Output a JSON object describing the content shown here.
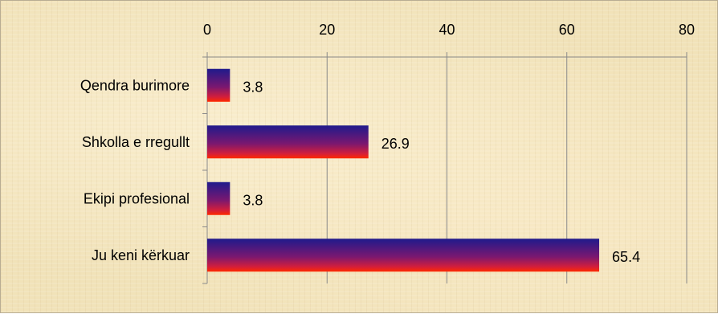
{
  "chart_data": {
    "type": "bar",
    "orientation": "horizontal",
    "categories": [
      "Qendra burimore",
      "Shkolla e rregullt",
      "Ekipi profesional",
      "Ju keni kërkuar"
    ],
    "values": [
      3.8,
      26.9,
      3.8,
      65.4
    ],
    "value_labels": [
      "3.8",
      "26.9",
      "3.8",
      "65.4"
    ],
    "xlim": [
      0,
      80
    ],
    "x_ticks": [
      "0",
      "20",
      "40",
      "60",
      "80"
    ],
    "x_axis_position": "top",
    "grid": true,
    "title": "",
    "xlabel": "",
    "ylabel": "",
    "colors": {
      "bar_top": "#1f1a8c",
      "bar_mid": "#7a1870",
      "bar_bottom": "#ff2a00",
      "grid": "#8a8a8a"
    }
  }
}
